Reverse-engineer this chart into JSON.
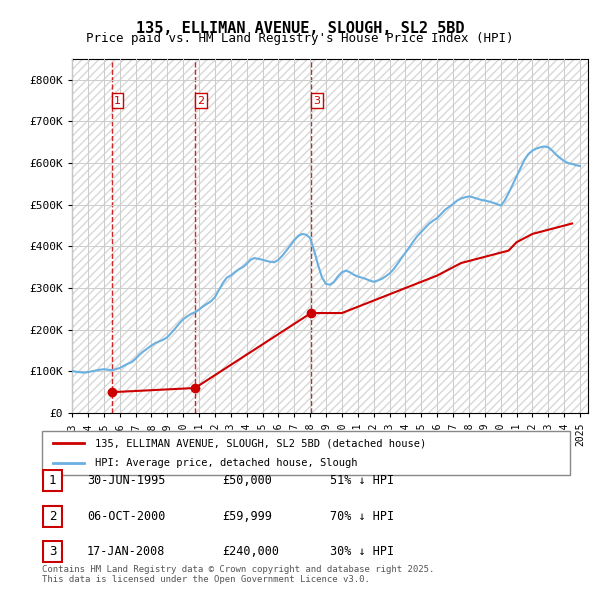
{
  "title": "135, ELLIMAN AVENUE, SLOUGH, SL2 5BD",
  "subtitle": "Price paid vs. HM Land Registry's House Price Index (HPI)",
  "ylabel_ticks": [
    "£0",
    "£100K",
    "£200K",
    "£300K",
    "£400K",
    "£500K",
    "£600K",
    "£700K",
    "£800K"
  ],
  "ytick_values": [
    0,
    100000,
    200000,
    300000,
    400000,
    500000,
    600000,
    700000,
    800000
  ],
  "ylim": [
    0,
    850000
  ],
  "xlim_start": 1993.0,
  "xlim_end": 2025.5,
  "background_color": "#ffffff",
  "hpi_line_color": "#6ab0e0",
  "price_line_color": "#cc0000",
  "hatch_color": "#e0e0e0",
  "grid_color": "#cccccc",
  "transactions": [
    {
      "num": 1,
      "date": "30-JUN-1995",
      "year": 1995.5,
      "price": 50000,
      "pct": "51% ↓ HPI"
    },
    {
      "num": 2,
      "date": "06-OCT-2000",
      "year": 2000.75,
      "price": 59999,
      "pct": "70% ↓ HPI"
    },
    {
      "num": 3,
      "date": "17-JAN-2008",
      "year": 2008.05,
      "price": 240000,
      "pct": "30% ↓ HPI"
    }
  ],
  "legend_label_red": "135, ELLIMAN AVENUE, SLOUGH, SL2 5BD (detached house)",
  "legend_label_blue": "HPI: Average price, detached house, Slough",
  "footer": "Contains HM Land Registry data © Crown copyright and database right 2025.\nThis data is licensed under the Open Government Licence v3.0.",
  "hpi_data_x": [
    1993.0,
    1993.25,
    1993.5,
    1993.75,
    1994.0,
    1994.25,
    1994.5,
    1994.75,
    1995.0,
    1995.25,
    1995.5,
    1995.75,
    1996.0,
    1996.25,
    1996.5,
    1996.75,
    1997.0,
    1997.25,
    1997.5,
    1997.75,
    1998.0,
    1998.25,
    1998.5,
    1998.75,
    1999.0,
    1999.25,
    1999.5,
    1999.75,
    2000.0,
    2000.25,
    2000.5,
    2000.75,
    2001.0,
    2001.25,
    2001.5,
    2001.75,
    2002.0,
    2002.25,
    2002.5,
    2002.75,
    2003.0,
    2003.25,
    2003.5,
    2003.75,
    2004.0,
    2004.25,
    2004.5,
    2004.75,
    2005.0,
    2005.25,
    2005.5,
    2005.75,
    2006.0,
    2006.25,
    2006.5,
    2006.75,
    2007.0,
    2007.25,
    2007.5,
    2007.75,
    2008.0,
    2008.25,
    2008.5,
    2008.75,
    2009.0,
    2009.25,
    2009.5,
    2009.75,
    2010.0,
    2010.25,
    2010.5,
    2010.75,
    2011.0,
    2011.25,
    2011.5,
    2011.75,
    2012.0,
    2012.25,
    2012.5,
    2012.75,
    2013.0,
    2013.25,
    2013.5,
    2013.75,
    2014.0,
    2014.25,
    2014.5,
    2014.75,
    2015.0,
    2015.25,
    2015.5,
    2015.75,
    2016.0,
    2016.25,
    2016.5,
    2016.75,
    2017.0,
    2017.25,
    2017.5,
    2017.75,
    2018.0,
    2018.25,
    2018.5,
    2018.75,
    2019.0,
    2019.25,
    2019.5,
    2019.75,
    2020.0,
    2020.25,
    2020.5,
    2020.75,
    2021.0,
    2021.25,
    2021.5,
    2021.75,
    2022.0,
    2022.25,
    2022.5,
    2022.75,
    2023.0,
    2023.25,
    2023.5,
    2023.75,
    2024.0,
    2024.25,
    2024.5,
    2024.75,
    2025.0
  ],
  "hpi_data_y": [
    101000,
    99000,
    98000,
    97000,
    98000,
    100000,
    102000,
    104000,
    105000,
    104000,
    103000,
    105000,
    108000,
    113000,
    118000,
    122000,
    130000,
    140000,
    148000,
    155000,
    162000,
    168000,
    172000,
    176000,
    182000,
    192000,
    203000,
    215000,
    225000,
    232000,
    238000,
    242000,
    248000,
    256000,
    262000,
    268000,
    278000,
    295000,
    312000,
    325000,
    330000,
    338000,
    345000,
    350000,
    358000,
    368000,
    372000,
    370000,
    368000,
    365000,
    363000,
    362000,
    368000,
    378000,
    390000,
    402000,
    415000,
    425000,
    430000,
    428000,
    420000,
    390000,
    355000,
    325000,
    310000,
    308000,
    315000,
    328000,
    338000,
    342000,
    338000,
    332000,
    328000,
    325000,
    322000,
    318000,
    315000,
    318000,
    322000,
    328000,
    335000,
    345000,
    358000,
    372000,
    385000,
    398000,
    412000,
    425000,
    435000,
    445000,
    455000,
    462000,
    468000,
    478000,
    488000,
    495000,
    502000,
    510000,
    515000,
    518000,
    520000,
    518000,
    515000,
    512000,
    510000,
    508000,
    505000,
    502000,
    498000,
    510000,
    528000,
    548000,
    568000,
    588000,
    608000,
    622000,
    630000,
    635000,
    638000,
    640000,
    638000,
    630000,
    620000,
    612000,
    605000,
    600000,
    598000,
    595000,
    593000
  ],
  "price_data_x": [
    1995.5,
    2000.75,
    2008.05,
    2010.0,
    2016.0,
    2017.5,
    2020.5,
    2021.0,
    2022.0,
    2023.0,
    2024.0,
    2024.5
  ],
  "price_data_y": [
    50000,
    59999,
    240000,
    240000,
    330000,
    360000,
    390000,
    410000,
    430000,
    440000,
    450000,
    455000
  ]
}
